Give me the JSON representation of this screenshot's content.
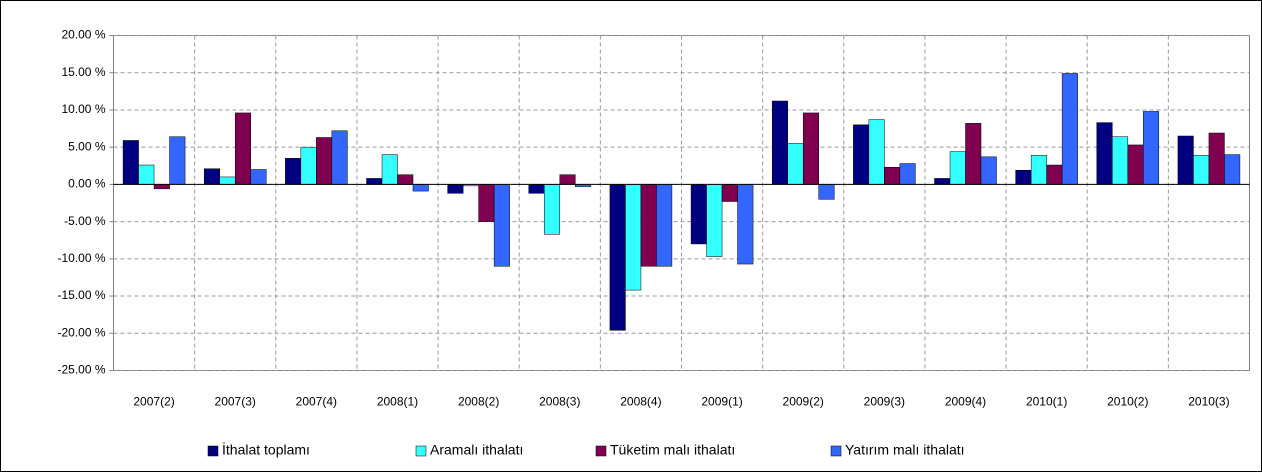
{
  "chart_data": {
    "type": "bar",
    "categories": [
      "2007(2)",
      "2007(3)",
      "2007(4)",
      "2008(1)",
      "2008(2)",
      "2008(3)",
      "2008(4)",
      "2009(1)",
      "2009(2)",
      "2009(3)",
      "2009(4)",
      "2010(1)",
      "2010(2)",
      "2010(3)"
    ],
    "series": [
      {
        "name": "İthalat toplamı",
        "color": "#000080",
        "values": [
          5.9,
          2.1,
          3.5,
          0.8,
          -1.2,
          -1.2,
          -19.6,
          -8.0,
          11.2,
          8.0,
          0.8,
          1.9,
          8.3,
          6.5
        ]
      },
      {
        "name": "Aramalı ithalatı",
        "color": "#33ffff",
        "values": [
          2.6,
          1.0,
          5.0,
          4.0,
          -0.2,
          -6.7,
          -14.2,
          -9.7,
          5.5,
          8.7,
          4.4,
          3.9,
          6.4,
          3.9
        ]
      },
      {
        "name": "Tüketim malı ithalatı",
        "color": "#800050",
        "values": [
          -0.6,
          9.6,
          6.3,
          1.3,
          -5.0,
          1.3,
          -11.0,
          -2.3,
          9.6,
          2.3,
          8.2,
          2.6,
          5.3,
          6.9
        ]
      },
      {
        "name": "Yatırım malı ithalatı",
        "color": "#3366ff",
        "values": [
          6.4,
          2.0,
          7.2,
          -0.9,
          -11.0,
          -0.3,
          -11.0,
          -10.7,
          -2.0,
          2.8,
          3.7,
          14.9,
          9.8,
          4.0
        ]
      }
    ],
    "ylim": [
      -25,
      20
    ],
    "yticks": [
      {
        "value": -25,
        "label": "-25.00 %"
      },
      {
        "value": -20,
        "label": "-20.00 %"
      },
      {
        "value": -15,
        "label": "-15.00 %"
      },
      {
        "value": -10,
        "label": "-10.00 %"
      },
      {
        "value": -5,
        "label": "-5.00 %"
      },
      {
        "value": 0,
        "label": "0.00 %"
      },
      {
        "value": 5,
        "label": "5.00 %"
      },
      {
        "value": 10,
        "label": "10.00 %"
      },
      {
        "value": 15,
        "label": "15.00 %"
      },
      {
        "value": 20,
        "label": "20.00 %"
      }
    ],
    "grid": true,
    "legend_position": "bottom"
  }
}
